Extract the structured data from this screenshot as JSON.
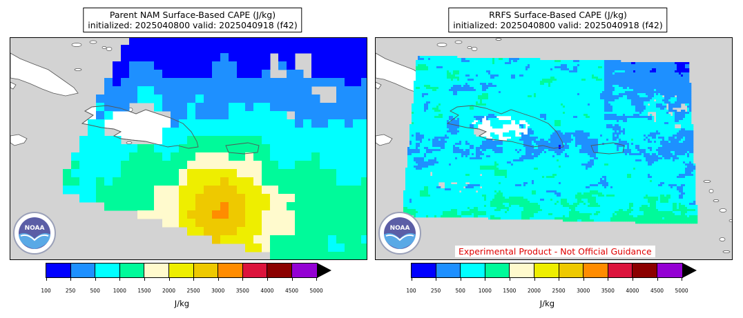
{
  "left_panel": {
    "title_line1": "Parent NAM Surface-Based CAPE (J/kg)",
    "title_line2": "initialized: 2025040800 valid: 2025040918 (f42)"
  },
  "right_panel": {
    "title_line1": "RRFS Surface-Based CAPE (J/kg)",
    "title_line2": "initialized: 2025040800 valid: 2025040918 (f42)",
    "disclaimer": "Experimental Product - Not Official Guidance"
  },
  "logo": {
    "text": "NOAA",
    "icon": "noaa-logo-icon"
  },
  "colorbar": {
    "units_label": "J/kg",
    "ticks": [
      "100",
      "250",
      "500",
      "1000",
      "1500",
      "2000",
      "2500",
      "3000",
      "3500",
      "4000",
      "4500",
      "5000"
    ],
    "colors": [
      "#0000ff",
      "#1e90ff",
      "#00ffff",
      "#00fa9a",
      "#fffacd",
      "#eeee00",
      "#eec900",
      "#ff8c00",
      "#dc143c",
      "#8b0000",
      "#9400d3"
    ],
    "extend": "max"
  },
  "colors": {
    "land": "#ffffff",
    "ocean_missing": "#d3d3d3",
    "coast": "#555555"
  }
}
